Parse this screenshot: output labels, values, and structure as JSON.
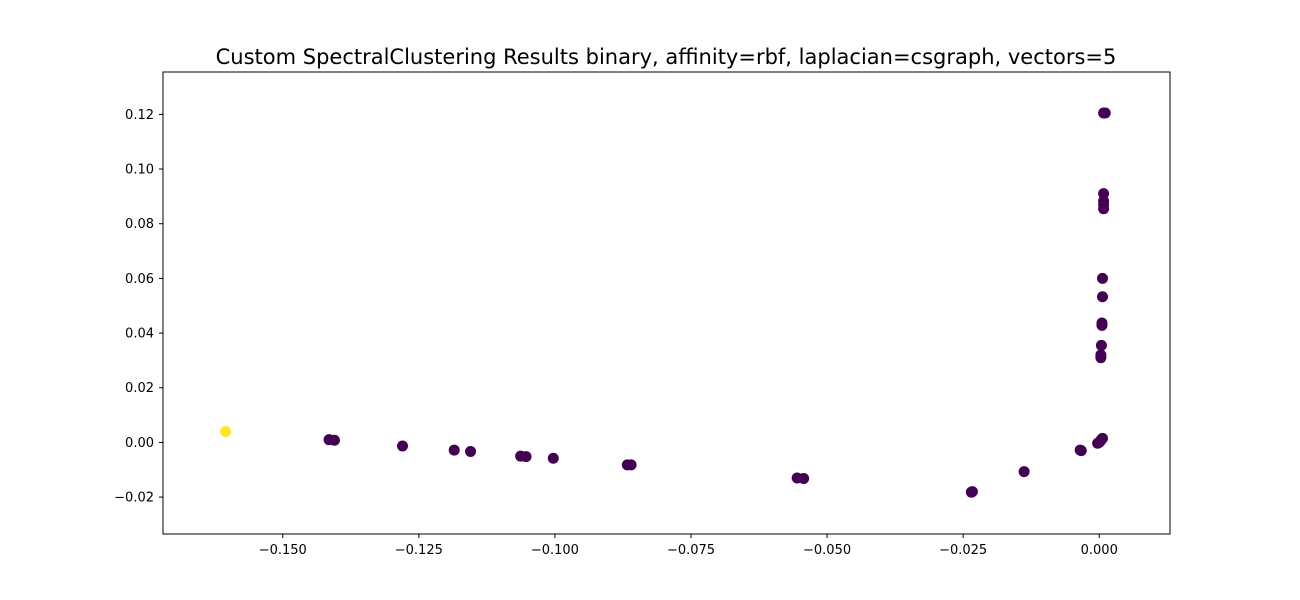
{
  "chart_data": {
    "type": "scatter",
    "title": "Custom SpectralClustering Results binary, affinity=rbf, laplacian=csgraph, vectors=5",
    "xlabel": "",
    "ylabel": "",
    "xlim": [
      -0.172,
      0.013
    ],
    "ylim": [
      -0.0335,
      0.1355
    ],
    "xticks": [
      -0.15,
      -0.125,
      -0.1,
      -0.075,
      -0.05,
      -0.025,
      0.0
    ],
    "xtick_labels": [
      "−0.150",
      "−0.125",
      "−0.100",
      "−0.075",
      "−0.050",
      "−0.025",
      "0.000"
    ],
    "yticks": [
      -0.02,
      0.0,
      0.02,
      0.04,
      0.06,
      0.08,
      0.1,
      0.12
    ],
    "ytick_labels": [
      "−0.02",
      "0.00",
      "0.02",
      "0.04",
      "0.06",
      "0.08",
      "0.10",
      "0.12"
    ],
    "grid": false,
    "colors": {
      "cluster_0": "#440154",
      "cluster_1": "#fde725"
    },
    "points": [
      {
        "x": -0.1605,
        "y": 0.004,
        "cluster": 1
      },
      {
        "x": -0.1415,
        "y": 0.001,
        "cluster": 0
      },
      {
        "x": -0.1405,
        "y": 0.0008,
        "cluster": 0
      },
      {
        "x": -0.128,
        "y": -0.0013,
        "cluster": 0
      },
      {
        "x": -0.1185,
        "y": -0.0028,
        "cluster": 0
      },
      {
        "x": -0.1155,
        "y": -0.0033,
        "cluster": 0
      },
      {
        "x": -0.1063,
        "y": -0.005,
        "cluster": 0
      },
      {
        "x": -0.1053,
        "y": -0.0052,
        "cluster": 0
      },
      {
        "x": -0.1003,
        "y": -0.0058,
        "cluster": 0
      },
      {
        "x": -0.0867,
        "y": -0.0082,
        "cluster": 0
      },
      {
        "x": -0.086,
        "y": -0.0082,
        "cluster": 0
      },
      {
        "x": -0.0555,
        "y": -0.013,
        "cluster": 0
      },
      {
        "x": -0.0543,
        "y": -0.0132,
        "cluster": 0
      },
      {
        "x": -0.0235,
        "y": -0.0182,
        "cluster": 0
      },
      {
        "x": -0.0233,
        "y": -0.018,
        "cluster": 0
      },
      {
        "x": -0.0138,
        "y": -0.0107,
        "cluster": 0
      },
      {
        "x": -0.0035,
        "y": -0.0028,
        "cluster": 0
      },
      {
        "x": -0.0033,
        "y": -0.003,
        "cluster": 0
      },
      {
        "x": -0.0003,
        "y": -0.0003,
        "cluster": 0
      },
      {
        "x": 0.0,
        "y": 0.0,
        "cluster": 0
      },
      {
        "x": 0.0002,
        "y": 0.0005,
        "cluster": 0
      },
      {
        "x": 0.0004,
        "y": 0.001,
        "cluster": 0
      },
      {
        "x": 0.0006,
        "y": 0.0015,
        "cluster": 0
      },
      {
        "x": 0.0003,
        "y": 0.031,
        "cluster": 0
      },
      {
        "x": 0.0003,
        "y": 0.032,
        "cluster": 0
      },
      {
        "x": 0.0004,
        "y": 0.0355,
        "cluster": 0
      },
      {
        "x": 0.0005,
        "y": 0.0428,
        "cluster": 0
      },
      {
        "x": 0.0005,
        "y": 0.0437,
        "cluster": 0
      },
      {
        "x": 0.0006,
        "y": 0.0533,
        "cluster": 0
      },
      {
        "x": 0.0006,
        "y": 0.06,
        "cluster": 0
      },
      {
        "x": 0.0008,
        "y": 0.0855,
        "cluster": 0
      },
      {
        "x": 0.0008,
        "y": 0.087,
        "cluster": 0
      },
      {
        "x": 0.0008,
        "y": 0.0883,
        "cluster": 0
      },
      {
        "x": 0.0008,
        "y": 0.091,
        "cluster": 0
      },
      {
        "x": 0.0008,
        "y": 0.1205,
        "cluster": 0
      },
      {
        "x": 0.0011,
        "y": 0.1205,
        "cluster": 0
      }
    ]
  }
}
